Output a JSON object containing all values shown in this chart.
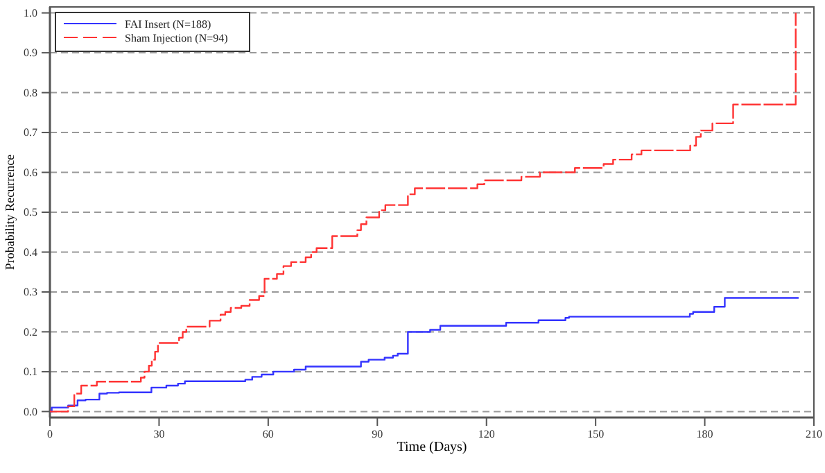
{
  "chart_data": {
    "type": "step",
    "xlabel": "Time (Days)",
    "ylabel": "Probability Recurrence",
    "xlim": [
      0,
      210
    ],
    "xticks": [
      0,
      30,
      60,
      90,
      120,
      150,
      180,
      210
    ],
    "ylim": [
      -0.015,
      1.015
    ],
    "yticks": [
      {
        "value": 0,
        "label": "0.0"
      },
      {
        "value": 0.1,
        "label": "0.1"
      },
      {
        "value": 0.2,
        "label": "0.2"
      },
      {
        "value": 0.3,
        "label": "0.3"
      },
      {
        "value": 0.4,
        "label": "0.4"
      },
      {
        "value": 0.5,
        "label": "0.5"
      },
      {
        "value": 0.6,
        "label": "0.6"
      },
      {
        "value": 0.7,
        "label": "0.7"
      },
      {
        "value": 0.8,
        "label": "0.8"
      },
      {
        "value": 0.9,
        "label": "0.9"
      },
      {
        "value": 1,
        "label": "1.0"
      }
    ],
    "grid": "y",
    "legend": "top left",
    "series": [
      {
        "name": "FAI Insert (N=188)",
        "color": "#3333ff",
        "line_style": "solid",
        "x": [
          0,
          0.5,
          5,
          7.6,
          9.8,
          13.6,
          15.7,
          19,
          27.9,
          32,
          35.2,
          37.1,
          53.7,
          55.6,
          58.2,
          61.4,
          67.1,
          70.3,
          85.5,
          87.6,
          92,
          94.3,
          95.6,
          98.4,
          104.5,
          107.3,
          125.4,
          134.3,
          141.7,
          142.7,
          175.9,
          176.8,
          182.6,
          185.5,
          205.8
        ],
        "values": [
          0,
          0.01,
          0.015,
          0.028,
          0.03,
          0.045,
          0.047,
          0.048,
          0.06,
          0.065,
          0.07,
          0.076,
          0.08,
          0.087,
          0.093,
          0.1,
          0.105,
          0.113,
          0.125,
          0.13,
          0.135,
          0.14,
          0.145,
          0.2,
          0.205,
          0.215,
          0.223,
          0.229,
          0.235,
          0.238,
          0.245,
          0.25,
          0.263,
          0.285,
          0.285
        ]
      },
      {
        "name": "Sham Injection (N=94)",
        "color": "#ff3333",
        "line_style": "dashed",
        "x": [
          0,
          5,
          6.7,
          8.6,
          12.9,
          25,
          26,
          27.2,
          28,
          28.9,
          29.7,
          35.5,
          36.5,
          37.5,
          43.9,
          46.9,
          48.2,
          49.7,
          52.6,
          54.9,
          57.5,
          59,
          62.4,
          64.2,
          66.3,
          70.3,
          71.8,
          73.3,
          77.6,
          84.5,
          85.5,
          87,
          90.5,
          92.2,
          98.4,
          100.3,
          117.5,
          119.4,
          129.6,
          134.7,
          144.3,
          152.2,
          154.8,
          159.9,
          162.6,
          176,
          177.6,
          178.9,
          182.1,
          187.8,
          205,
          205
        ],
        "values": [
          0,
          0.013,
          0.045,
          0.065,
          0.075,
          0.085,
          0.1,
          0.115,
          0.13,
          0.15,
          0.172,
          0.185,
          0.2,
          0.213,
          0.228,
          0.243,
          0.25,
          0.26,
          0.265,
          0.28,
          0.29,
          0.333,
          0.345,
          0.365,
          0.375,
          0.387,
          0.4,
          0.41,
          0.44,
          0.455,
          0.47,
          0.487,
          0.505,
          0.518,
          0.545,
          0.56,
          0.57,
          0.58,
          0.589,
          0.6,
          0.611,
          0.621,
          0.632,
          0.645,
          0.655,
          0.667,
          0.689,
          0.705,
          0.723,
          0.77,
          0.77,
          1.0
        ]
      }
    ]
  }
}
